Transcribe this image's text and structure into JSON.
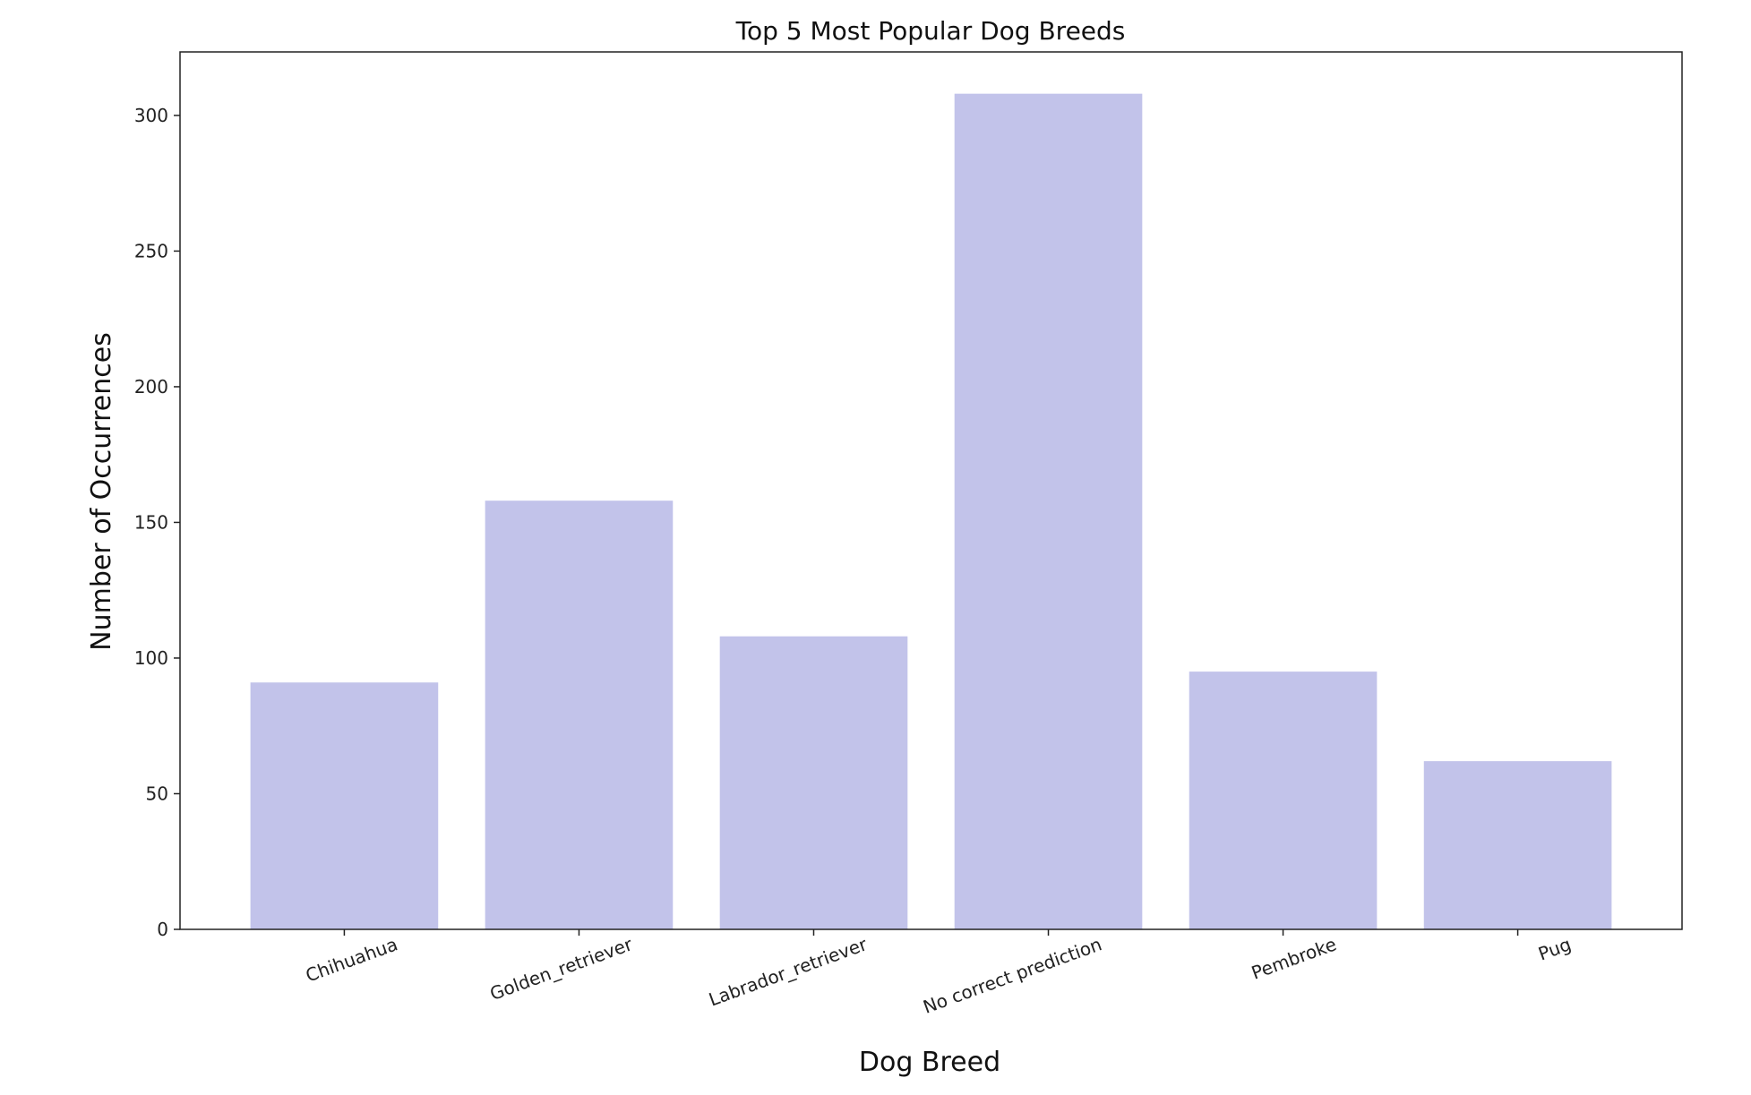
{
  "chart_data": {
    "type": "bar",
    "title": "Top 5 Most Popular Dog Breeds",
    "xlabel": "Dog Breed",
    "ylabel": "Number of Occurrences",
    "categories": [
      "Chihuahua",
      "Golden_retriever",
      "Labrador_retriever",
      "No correct prediction",
      "Pembroke",
      "Pug"
    ],
    "values": [
      91,
      158,
      108,
      308,
      95,
      62
    ],
    "ylim": [
      0,
      323.4
    ],
    "yticks": [
      0,
      50,
      100,
      150,
      200,
      250,
      300
    ],
    "grid": false,
    "bar_color": "#c2c3ea",
    "x_tick_rotation": -20
  }
}
